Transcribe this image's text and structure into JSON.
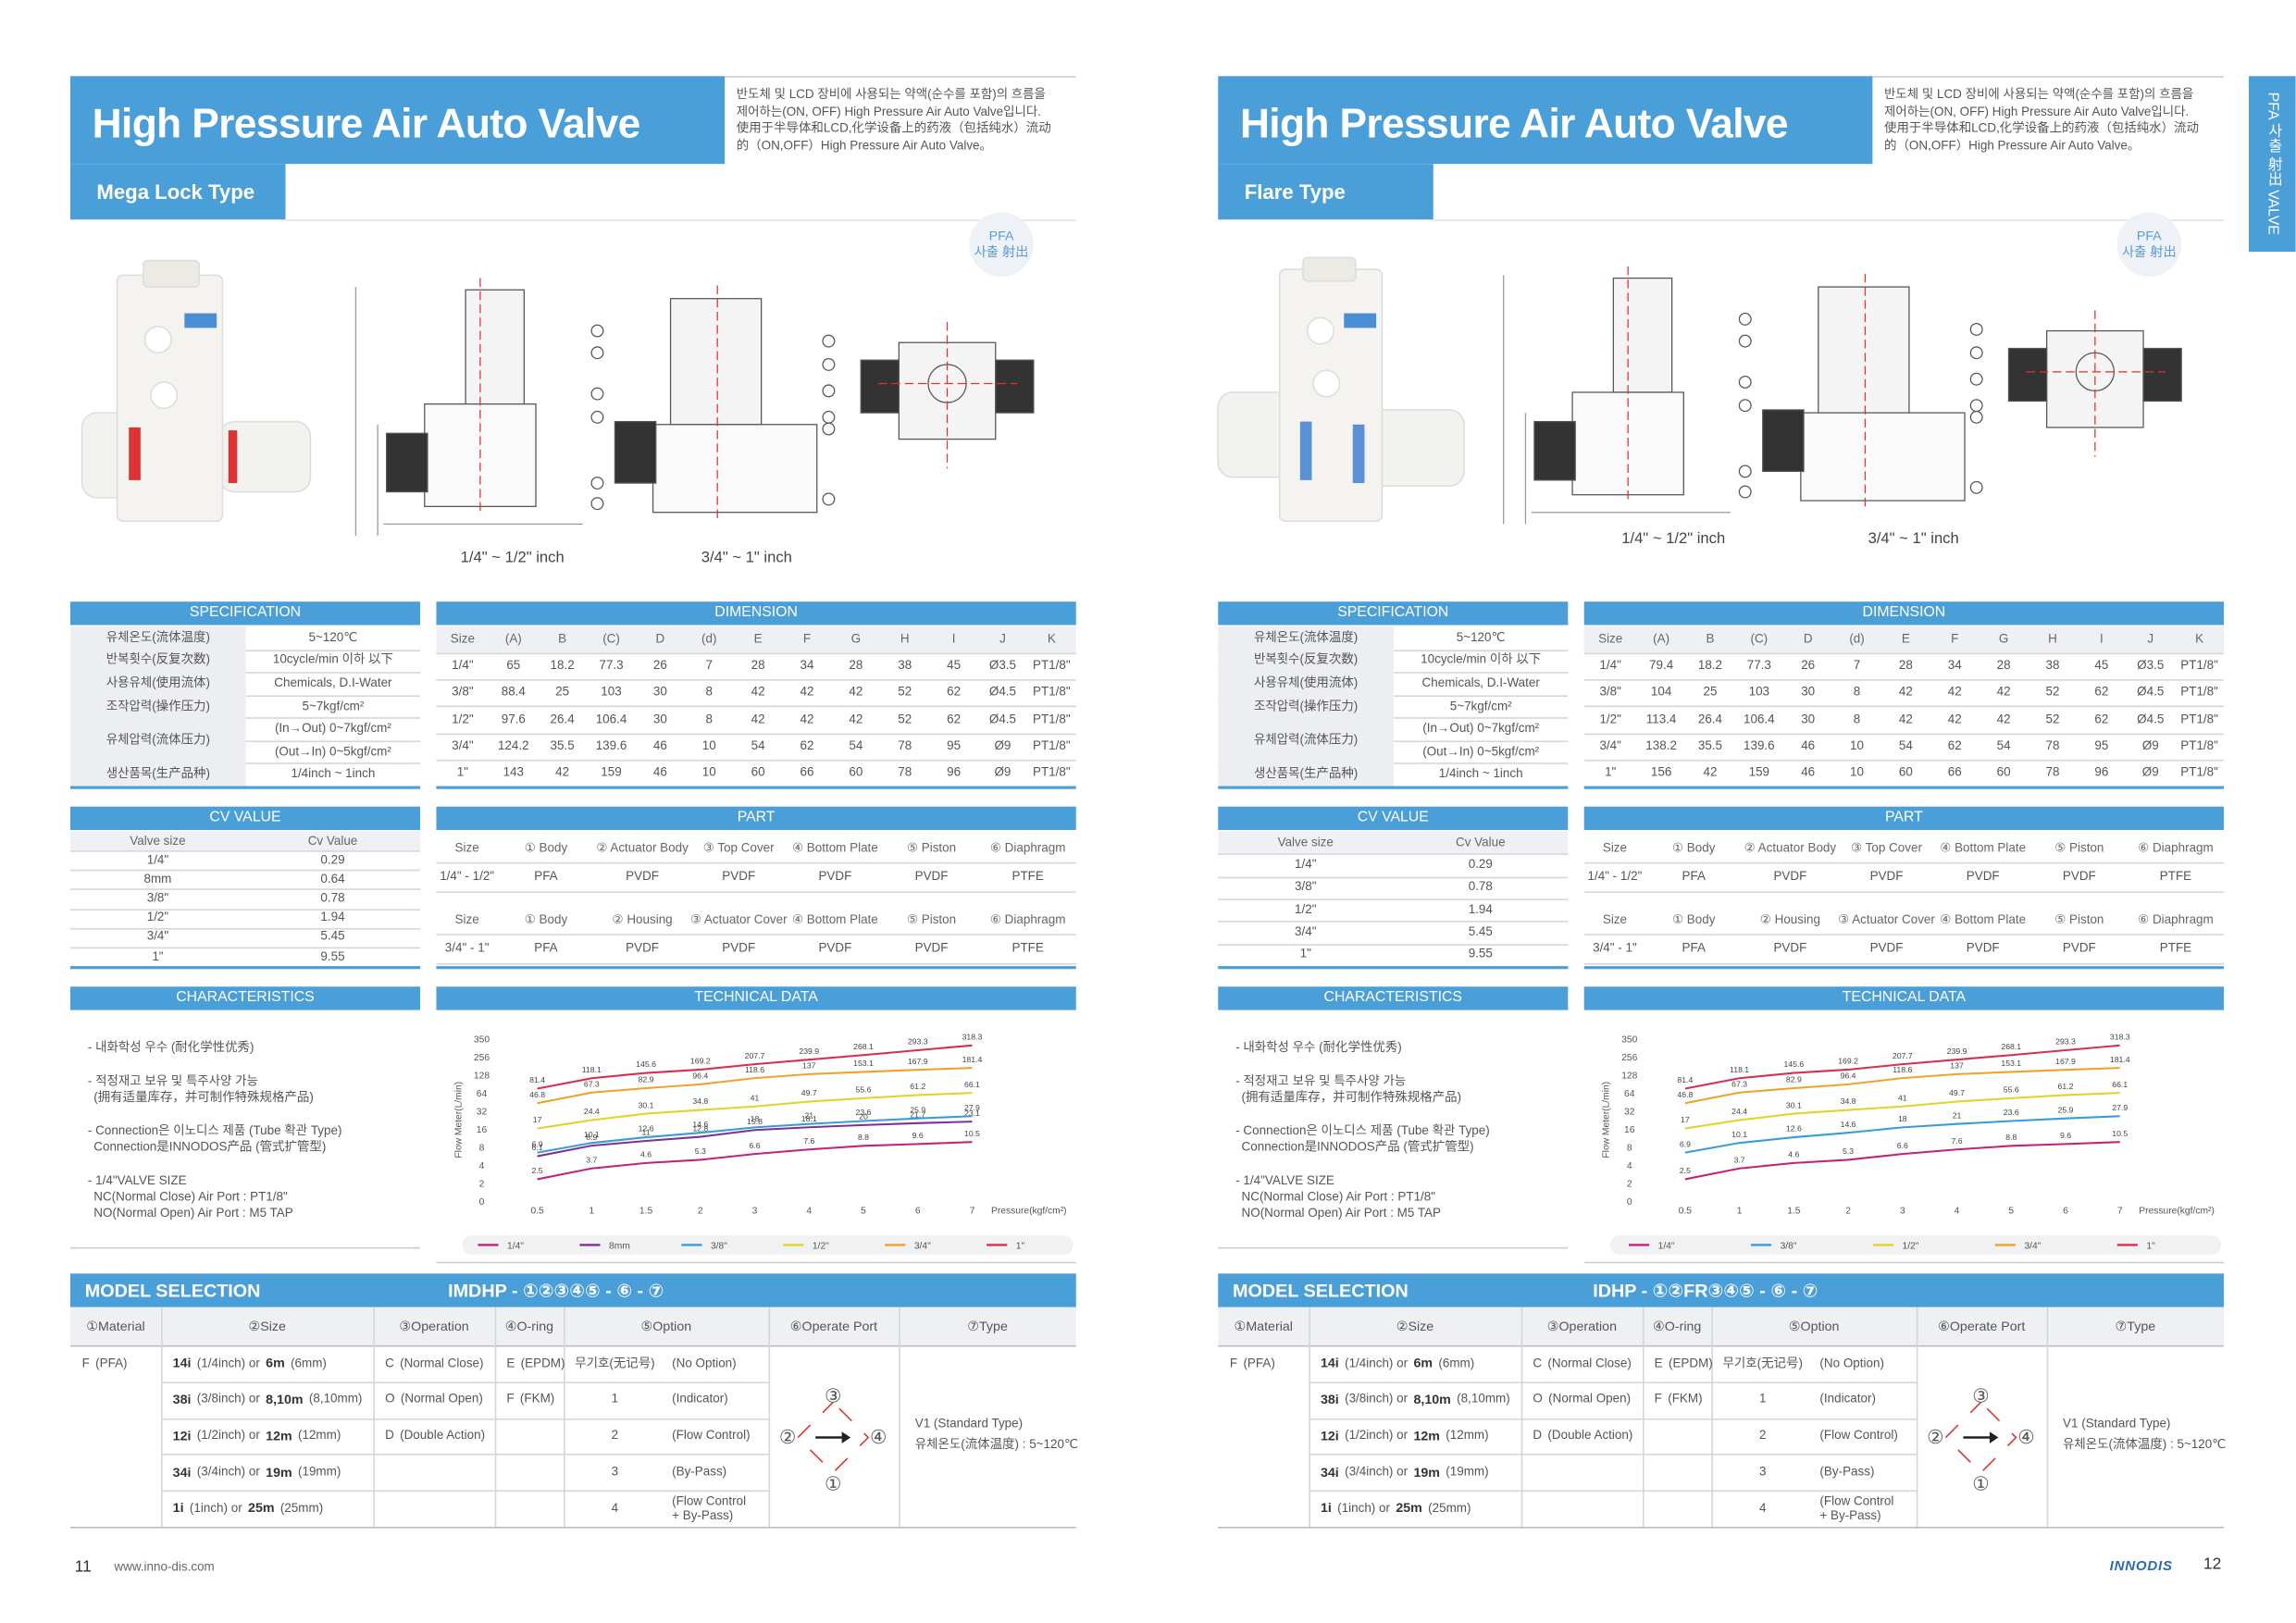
{
  "side_tab": "PFA 사출 射出 VALVE",
  "pages": [
    {
      "title": "High Pressure Air Auto Valve",
      "subtitle": "Mega Lock Type",
      "description": [
        "반도체 및 LCD 장비에 사용되는 약액(순수를 포함)의 흐름을",
        "제어하는(ON, OFF) High Pressure Air Auto Valve입니다.",
        "使用于半导体和LCD,化学设备上的药液（包括纯水）流动",
        "的（ON,OFF）High Pressure Air Auto Valve。"
      ],
      "badge": [
        "PFA",
        "사출 射出"
      ],
      "drawing_labels": [
        "1/4\" ~ 1/2\" inch",
        "3/4\" ~ 1\" inch"
      ],
      "specification": {
        "title": "SPECIFICATION",
        "rows": [
          [
            "유체온도(流体温度)",
            "5~120℃"
          ],
          [
            "반복횟수(反复次数)",
            "10cycle/min 이하 以下"
          ],
          [
            "사용유체(使用流体)",
            "Chemicals, D.I-Water"
          ],
          [
            "조작압력(操作压力)",
            "5~7kgf/cm²"
          ],
          [
            "유체압력(流体压力)",
            "(In→Out) 0~7kgf/cm²",
            "(Out→In) 0~5kgf/cm²"
          ],
          [
            "생산품목(生产品种)",
            "1/4inch ~ 1inch"
          ]
        ]
      },
      "dimension": {
        "title": "DIMENSION",
        "header": [
          "Size",
          "(A)",
          "B",
          "(C)",
          "D",
          "(d)",
          "E",
          "F",
          "G",
          "H",
          "I",
          "J",
          "K"
        ],
        "rows": [
          [
            "1/4\"",
            "65",
            "18.2",
            "77.3",
            "26",
            "7",
            "28",
            "34",
            "28",
            "38",
            "45",
            "Ø3.5",
            "PT1/8\""
          ],
          [
            "3/8\"",
            "88.4",
            "25",
            "103",
            "30",
            "8",
            "42",
            "42",
            "42",
            "52",
            "62",
            "Ø4.5",
            "PT1/8\""
          ],
          [
            "1/2\"",
            "97.6",
            "26.4",
            "106.4",
            "30",
            "8",
            "42",
            "42",
            "42",
            "52",
            "62",
            "Ø4.5",
            "PT1/8\""
          ],
          [
            "3/4\"",
            "124.2",
            "35.5",
            "139.6",
            "46",
            "10",
            "54",
            "62",
            "54",
            "78",
            "95",
            "Ø9",
            "PT1/8\""
          ],
          [
            "1\"",
            "143",
            "42",
            "159",
            "46",
            "10",
            "60",
            "66",
            "60",
            "78",
            "96",
            "Ø9",
            "PT1/8\""
          ]
        ]
      },
      "cv": {
        "title": "CV VALUE",
        "header": [
          "Valve size",
          "Cv Value"
        ],
        "rows": [
          [
            "1/4\"",
            "0.29"
          ],
          [
            "8mm",
            "0.64"
          ],
          [
            "3/8\"",
            "0.78"
          ],
          [
            "1/2\"",
            "1.94"
          ],
          [
            "3/4\"",
            "5.45"
          ],
          [
            "1\"",
            "9.55"
          ]
        ]
      },
      "part": {
        "title": "PART",
        "tables": [
          {
            "header": [
              "Size",
              "① Body",
              "② Actuator Body",
              "③ Top Cover",
              "④ Bottom Plate",
              "⑤ Piston",
              "⑥ Diaphragm"
            ],
            "rows": [
              [
                "1/4\" - 1/2\"",
                "PFA",
                "PVDF",
                "PVDF",
                "PVDF",
                "PVDF",
                "PTFE"
              ]
            ]
          },
          {
            "header": [
              "Size",
              "① Body",
              "② Housing",
              "③ Actuator Cover",
              "④ Bottom Plate",
              "⑤ Piston",
              "⑥ Diaphragm"
            ],
            "rows": [
              [
                "3/4\" - 1\"",
                "PFA",
                "PVDF",
                "PVDF",
                "PVDF",
                "PVDF",
                "PTFE"
              ]
            ]
          }
        ]
      },
      "characteristics": {
        "title": "CHARACTERISTICS",
        "items": [
          [
            "- 내화학성 우수 (耐化学性优秀)"
          ],
          [
            "- 적정재고 보유 및 특주사양 가능",
            "(拥有适量库存，并可制作特殊规格产品)"
          ],
          [
            "- Connection은 이노디스 제품 (Tube 확관 Type)",
            "Connection是INNODOS产品 (管式扩管型)"
          ],
          [
            "- 1/4\"VALVE SIZE",
            "NC(Normal Close) Air Port : PT1/8\"",
            "NO(Normal Open) Air Port : M5 TAP"
          ]
        ]
      },
      "technical_data": {
        "title": "TECHNICAL DATA",
        "chart_data": {
          "type": "line",
          "x_label": "Pressure(kgf/cm²)",
          "y_label": "Flow Meter(L/min)",
          "categories": [
            "0.5",
            "1",
            "1.5",
            "2",
            "3",
            "4",
            "5",
            "6",
            "7"
          ],
          "ylim": [
            0,
            350
          ],
          "yticks": [
            0,
            2,
            4,
            8,
            16,
            32,
            64,
            128,
            256,
            350
          ],
          "series": [
            {
              "name": "1/4\"",
              "color": "#c2237a",
              "values": [
                2.5,
                3.7,
                4.6,
                5.3,
                6.6,
                7.6,
                8.8,
                9.6,
                10.5
              ]
            },
            {
              "name": "8mm",
              "color": "#7b3294",
              "values": [
                6.1,
                8.9,
                11,
                12.8,
                15.8,
                18.1,
                20,
                21.7,
                23.1
              ]
            },
            {
              "name": "3/8\"",
              "color": "#3b9ad9",
              "values": [
                6.9,
                10.1,
                12.6,
                14.6,
                18,
                21,
                23.6,
                25.9,
                27.9
              ]
            },
            {
              "name": "1/2\"",
              "color": "#e3d22a",
              "values": [
                17,
                24.4,
                30.1,
                34.8,
                41,
                49.7,
                55.6,
                61.2,
                66.1
              ]
            },
            {
              "name": "3/4\"",
              "color": "#f0a12a",
              "values": [
                46.8,
                67.3,
                82.9,
                96.4,
                118.6,
                137,
                153.1,
                167.9,
                181.4
              ]
            },
            {
              "name": "1\"",
              "color": "#d62f4f",
              "values": [
                81.4,
                118.1,
                145.6,
                169.2,
                207.7,
                239.9,
                268.1,
                293.3,
                318.3
              ]
            }
          ]
        }
      },
      "model_selection": {
        "title": "MODEL SELECTION",
        "code": "IMDHP - ①②③④⑤ - ⑥ - ⑦",
        "header": [
          "①Material",
          "②Size",
          "③Operation",
          "④O-ring",
          "⑤Option",
          "⑥Operate Port",
          "⑦Type"
        ],
        "rows": [
          [
            [
              "F",
              "(PFA)"
            ],
            [
              "14i",
              "(1/4inch) or",
              "6m",
              "(6mm)"
            ],
            [
              "C",
              "(Normal Close)"
            ],
            [
              "E",
              "(EPDM)"
            ],
            [
              "무기호(无记号)",
              "(No Option)"
            ]
          ],
          [
            null,
            [
              "38i",
              "(3/8inch) or",
              "8,10m",
              "(8,10mm)"
            ],
            [
              "O",
              "(Normal Open)"
            ],
            [
              "F",
              "(FKM)"
            ],
            [
              "1",
              "(Indicator)"
            ]
          ],
          [
            null,
            [
              "12i",
              "(1/2inch) or",
              "12m",
              "(12mm)"
            ],
            [
              "D",
              "(Double Action)"
            ],
            null,
            [
              "2",
              "(Flow Control)"
            ]
          ],
          [
            null,
            [
              "34i",
              "(3/4inch) or",
              "19m",
              "(19mm)"
            ],
            null,
            null,
            [
              "3",
              "(By-Pass)"
            ]
          ],
          [
            null,
            [
              "1i",
              "(1inch) or",
              "25m",
              "(25mm)"
            ],
            null,
            null,
            [
              "4",
              "(Flow Control",
              "+ By-Pass)"
            ]
          ]
        ],
        "port_labels": [
          "③",
          "②",
          "④",
          "①"
        ],
        "type": [
          "V1 (Standard Type)",
          "유체온도(流体温度) : 5~120℃"
        ]
      },
      "footer": {
        "page_number": "11",
        "url": "www.inno-dis.com"
      }
    },
    {
      "title": "High Pressure Air Auto Valve",
      "subtitle": "Flare Type",
      "description": [
        "반도체 및 LCD 장비에 사용되는 약액(순수를 포함)의 흐름을",
        "제어하는(ON, OFF) High Pressure Air Auto Valve입니다.",
        "使用于半导体和LCD,化学设备上的药液（包括纯水）流动",
        "的（ON,OFF）High Pressure Air Auto Valve。"
      ],
      "badge": [
        "PFA",
        "사출 射出"
      ],
      "drawing_labels": [
        "1/4\" ~ 1/2\" inch",
        "3/4\" ~ 1\" inch"
      ],
      "specification": {
        "title": "SPECIFICATION",
        "rows": [
          [
            "유체온도(流体温度)",
            "5~120℃"
          ],
          [
            "반복횟수(反复次数)",
            "10cycle/min 이하 以下"
          ],
          [
            "사용유체(使用流体)",
            "Chemicals, D.I-Water"
          ],
          [
            "조작압력(操作压力)",
            "5~7kgf/cm²"
          ],
          [
            "유체압력(流体压力)",
            "(In→Out) 0~7kgf/cm²",
            "(Out→In) 0~5kgf/cm²"
          ],
          [
            "생산품목(生产品种)",
            "1/4inch ~ 1inch"
          ]
        ]
      },
      "dimension": {
        "title": "DIMENSION",
        "header": [
          "Size",
          "(A)",
          "B",
          "(C)",
          "D",
          "(d)",
          "E",
          "F",
          "G",
          "H",
          "I",
          "J",
          "K"
        ],
        "rows": [
          [
            "1/4\"",
            "79.4",
            "18.2",
            "77.3",
            "26",
            "7",
            "28",
            "34",
            "28",
            "38",
            "45",
            "Ø3.5",
            "PT1/8\""
          ],
          [
            "3/8\"",
            "104",
            "25",
            "103",
            "30",
            "8",
            "42",
            "42",
            "42",
            "52",
            "62",
            "Ø4.5",
            "PT1/8\""
          ],
          [
            "1/2\"",
            "113.4",
            "26.4",
            "106.4",
            "30",
            "8",
            "42",
            "42",
            "42",
            "52",
            "62",
            "Ø4.5",
            "PT1/8\""
          ],
          [
            "3/4\"",
            "138.2",
            "35.5",
            "139.6",
            "46",
            "10",
            "54",
            "62",
            "54",
            "78",
            "95",
            "Ø9",
            "PT1/8\""
          ],
          [
            "1\"",
            "156",
            "42",
            "159",
            "46",
            "10",
            "60",
            "66",
            "60",
            "78",
            "96",
            "Ø9",
            "PT1/8\""
          ]
        ]
      },
      "cv": {
        "title": "CV VALUE",
        "header": [
          "Valve size",
          "Cv Value"
        ],
        "rows": [
          [
            "1/4\"",
            "0.29"
          ],
          [
            "3/8\"",
            "0.78"
          ],
          [
            "1/2\"",
            "1.94"
          ],
          [
            "3/4\"",
            "5.45"
          ],
          [
            "1\"",
            "9.55"
          ]
        ]
      },
      "part": {
        "title": "PART",
        "tables": [
          {
            "header": [
              "Size",
              "① Body",
              "② Actuator Body",
              "③ Top Cover",
              "④ Bottom Plate",
              "⑤ Piston",
              "⑥ Diaphragm"
            ],
            "rows": [
              [
                "1/4\" - 1/2\"",
                "PFA",
                "PVDF",
                "PVDF",
                "PVDF",
                "PVDF",
                "PTFE"
              ]
            ]
          },
          {
            "header": [
              "Size",
              "① Body",
              "② Housing",
              "③ Actuator Cover",
              "④ Bottom Plate",
              "⑤ Piston",
              "⑥ Diaphragm"
            ],
            "rows": [
              [
                "3/4\" - 1\"",
                "PFA",
                "PVDF",
                "PVDF",
                "PVDF",
                "PVDF",
                "PTFE"
              ]
            ]
          }
        ]
      },
      "characteristics": {
        "title": "CHARACTERISTICS",
        "items": [
          [
            "- 내화학성 우수 (耐化学性优秀)"
          ],
          [
            "- 적정재고 보유 및 특주사양 가능",
            "(拥有适量库存，并可制作特殊规格产品)"
          ],
          [
            "- Connection은 이노디스 제품 (Tube 확관 Type)",
            "Connection是INNODOS产品 (管式扩管型)"
          ],
          [
            "- 1/4\"VALVE SIZE",
            "NC(Normal Close) Air Port : PT1/8\"",
            "NO(Normal Open) Air Port : M5 TAP"
          ]
        ]
      },
      "technical_data": {
        "title": "TECHNICAL DATA",
        "chart_data": {
          "type": "line",
          "x_label": "Pressure(kgf/cm²)",
          "y_label": "Flow Meter(L/min)",
          "categories": [
            "0.5",
            "1",
            "1.5",
            "2",
            "3",
            "4",
            "5",
            "6",
            "7"
          ],
          "ylim": [
            0,
            350
          ],
          "yticks": [
            0,
            2,
            4,
            8,
            16,
            32,
            64,
            128,
            256,
            350
          ],
          "series": [
            {
              "name": "1/4\"",
              "color": "#c2237a",
              "values": [
                2.5,
                3.7,
                4.6,
                5.3,
                6.6,
                7.6,
                8.8,
                9.6,
                10.5
              ]
            },
            {
              "name": "3/8\"",
              "color": "#3b9ad9",
              "values": [
                6.9,
                10.1,
                12.6,
                14.6,
                18,
                21,
                23.6,
                25.9,
                27.9
              ]
            },
            {
              "name": "1/2\"",
              "color": "#e3d22a",
              "values": [
                17,
                24.4,
                30.1,
                34.8,
                41,
                49.7,
                55.6,
                61.2,
                66.1
              ]
            },
            {
              "name": "3/4\"",
              "color": "#f0a12a",
              "values": [
                46.8,
                67.3,
                82.9,
                96.4,
                118.6,
                137,
                153.1,
                167.9,
                181.4
              ]
            },
            {
              "name": "1\"",
              "color": "#d62f4f",
              "values": [
                81.4,
                118.1,
                145.6,
                169.2,
                207.7,
                239.9,
                268.1,
                293.3,
                318.3
              ]
            }
          ]
        }
      },
      "model_selection": {
        "title": "MODEL SELECTION",
        "code": "IDHP - ①②FR③④⑤ - ⑥ - ⑦",
        "header": [
          "①Material",
          "②Size",
          "③Operation",
          "④O-ring",
          "⑤Option",
          "⑥Operate Port",
          "⑦Type"
        ],
        "rows": [
          [
            [
              "F",
              "(PFA)"
            ],
            [
              "14i",
              "(1/4inch) or",
              "6m",
              "(6mm)"
            ],
            [
              "C",
              "(Normal Close)"
            ],
            [
              "E",
              "(EPDM)"
            ],
            [
              "무기호(无记号)",
              "(No Option)"
            ]
          ],
          [
            null,
            [
              "38i",
              "(3/8inch) or",
              "8,10m",
              "(8,10mm)"
            ],
            [
              "O",
              "(Normal Open)"
            ],
            [
              "F",
              "(FKM)"
            ],
            [
              "1",
              "(Indicator)"
            ]
          ],
          [
            null,
            [
              "12i",
              "(1/2inch) or",
              "12m",
              "(12mm)"
            ],
            [
              "D",
              "(Double Action)"
            ],
            null,
            [
              "2",
              "(Flow Control)"
            ]
          ],
          [
            null,
            [
              "34i",
              "(3/4inch) or",
              "19m",
              "(19mm)"
            ],
            null,
            null,
            [
              "3",
              "(By-Pass)"
            ]
          ],
          [
            null,
            [
              "1i",
              "(1inch) or",
              "25m",
              "(25mm)"
            ],
            null,
            null,
            [
              "4",
              "(Flow Control",
              "+ By-Pass)"
            ]
          ]
        ],
        "port_labels": [
          "③",
          "②",
          "④",
          "①"
        ],
        "type": [
          "V1 (Standard Type)",
          "유체온도(流体温度) : 5~120℃"
        ]
      },
      "footer": {
        "brand": "INNODIS",
        "page_number": "12"
      }
    }
  ]
}
